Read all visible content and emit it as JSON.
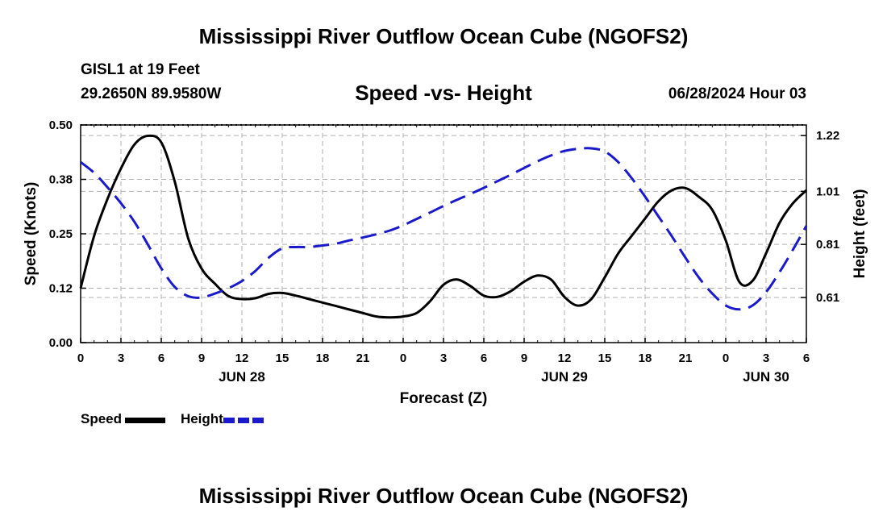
{
  "header": {
    "title": "Mississippi River Outflow Ocean Cube (NGOFS2)",
    "station": "GISL1 at 19 Feet",
    "coords": "29.2650N  89.9580W",
    "plot_title": "Speed -vs- Height",
    "timestamp": "06/28/2024 Hour 03"
  },
  "footer_title": "Mississippi River Outflow Ocean Cube (NGOFS2)",
  "colors": {
    "speed": "#000000",
    "height": "#1a1acc",
    "grid": "#b0b0b0"
  },
  "legend": {
    "speed_label": "Speed",
    "height_label": "Height"
  },
  "chart_data": {
    "type": "line",
    "title": "Speed -vs- Height",
    "xlabel": "Forecast (Z)",
    "ylabel": "Speed (Knots)",
    "y2label": "Height (feet)",
    "xlim": [
      0,
      54
    ],
    "ylim": [
      0,
      0.5
    ],
    "y2lim": [
      0.44,
      1.26
    ],
    "x_ticks": [
      0,
      3,
      6,
      9,
      12,
      15,
      18,
      21,
      24,
      27,
      30,
      33,
      36,
      39,
      42,
      45,
      48,
      51,
      54
    ],
    "x_tick_labels": [
      "0",
      "3",
      "6",
      "9",
      "12",
      "15",
      "18",
      "21",
      "0",
      "3",
      "6",
      "9",
      "12",
      "15",
      "18",
      "21",
      "0",
      "3",
      "6"
    ],
    "date_labels": [
      {
        "x": 12,
        "label": "JUN 28"
      },
      {
        "x": 36,
        "label": "JUN 29"
      },
      {
        "x": 51,
        "label": "JUN 30"
      }
    ],
    "y_ticks": [
      0,
      0.125,
      0.25,
      0.375,
      0.5
    ],
    "y_tick_labels": [
      "0.00",
      "0.12",
      "0.25",
      "0.38",
      "0.50"
    ],
    "y2_ticks": [
      0.61,
      0.81,
      1.01,
      1.22
    ],
    "y2_tick_labels": [
      "0.61",
      "0.81",
      "1.01",
      "1.22"
    ],
    "grid": true,
    "series": [
      {
        "name": "Speed",
        "axis": "left",
        "style": "solid",
        "x": [
          0,
          1,
          2,
          3,
          4,
          5,
          6,
          7,
          8,
          9,
          10,
          11,
          12,
          13,
          14,
          15,
          16,
          17,
          18,
          19,
          20,
          21,
          22,
          23,
          24,
          25,
          26,
          27,
          28,
          29,
          30,
          31,
          32,
          33,
          34,
          35,
          36,
          37,
          38,
          39,
          40,
          41,
          42,
          43,
          44,
          45,
          46,
          47,
          48,
          49,
          50,
          51,
          52,
          53,
          54
        ],
        "values": [
          0.125,
          0.245,
          0.33,
          0.4,
          0.455,
          0.475,
          0.46,
          0.37,
          0.24,
          0.17,
          0.135,
          0.107,
          0.1,
          0.102,
          0.112,
          0.114,
          0.108,
          0.1,
          0.092,
          0.084,
          0.076,
          0.068,
          0.06,
          0.058,
          0.06,
          0.068,
          0.095,
          0.133,
          0.145,
          0.13,
          0.108,
          0.105,
          0.118,
          0.14,
          0.154,
          0.145,
          0.105,
          0.085,
          0.1,
          0.15,
          0.205,
          0.245,
          0.285,
          0.325,
          0.35,
          0.355,
          0.335,
          0.305,
          0.235,
          0.14,
          0.142,
          0.205,
          0.275,
          0.32,
          0.35
        ]
      },
      {
        "name": "Height",
        "axis": "right",
        "style": "dashed",
        "x": [
          0,
          1,
          2,
          3,
          4,
          5,
          6,
          7,
          8,
          9,
          10,
          11,
          12,
          13,
          14,
          15,
          16,
          17,
          18,
          19,
          20,
          21,
          22,
          23,
          24,
          25,
          26,
          27,
          28,
          29,
          30,
          31,
          32,
          33,
          34,
          35,
          36,
          37,
          38,
          39,
          40,
          41,
          42,
          43,
          44,
          45,
          46,
          47,
          48,
          49,
          50,
          51,
          52,
          53,
          54
        ],
        "values": [
          1.12,
          1.08,
          1.025,
          0.965,
          0.895,
          0.81,
          0.72,
          0.65,
          0.615,
          0.61,
          0.625,
          0.645,
          0.672,
          0.71,
          0.76,
          0.795,
          0.8,
          0.8,
          0.806,
          0.813,
          0.825,
          0.836,
          0.848,
          0.862,
          0.882,
          0.906,
          0.93,
          0.955,
          0.978,
          1.0,
          1.023,
          1.048,
          1.072,
          1.098,
          1.123,
          1.145,
          1.162,
          1.17,
          1.172,
          1.16,
          1.12,
          1.06,
          0.99,
          0.915,
          0.84,
          0.76,
          0.685,
          0.625,
          0.58,
          0.565,
          0.58,
          0.63,
          0.705,
          0.79,
          0.88
        ]
      }
    ]
  }
}
